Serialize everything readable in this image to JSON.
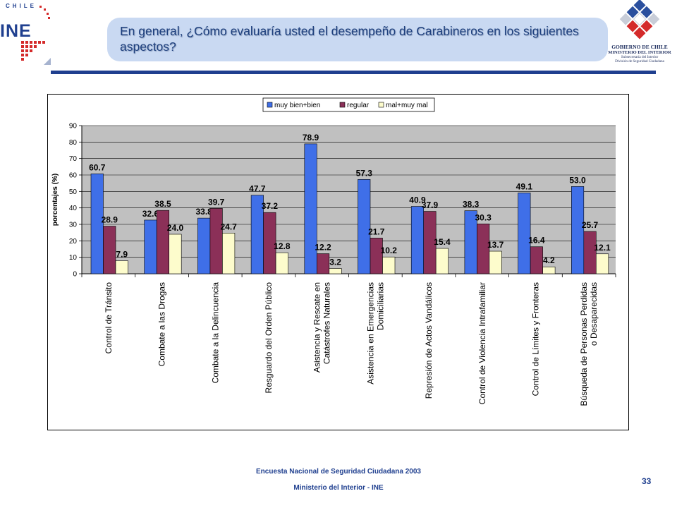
{
  "header": {
    "title": "En general, ¿Cómo evaluaría usted el desempeño de Carabineros en los siguientes aspectos?",
    "ine_logo_text": "INE",
    "chile_text": "CHILE",
    "gov_line1": "GOBIERNO DE CHILE",
    "gov_line2": "MINISTERIO DEL INTERIOR",
    "gov_line3": "Subsecretaría del Interior",
    "gov_line4": "División de Seguridad Ciudadana"
  },
  "footer": {
    "line1": "Encuesta Nacional de Seguridad Ciudadana 2003",
    "line2": "Ministerio del Interior - INE",
    "page_number": "33"
  },
  "colors": {
    "series1": "#3f6fe8",
    "series2": "#8b3058",
    "series3": "#fdfccc",
    "plot_bg": "#c0c0c0",
    "accent": "#1f3f8f"
  },
  "chart_data": {
    "type": "bar",
    "title": "",
    "ylabel": "porcentajes (%)",
    "xlabel": "",
    "ylim": [
      0,
      90
    ],
    "yticks": [
      0,
      10,
      20,
      30,
      40,
      50,
      60,
      70,
      80,
      90
    ],
    "grid": true,
    "legend_position": "top-right",
    "categories": [
      [
        "Control de Tránsito"
      ],
      [
        "Combate a las Drogas"
      ],
      [
        "Combate a la Delincuencia"
      ],
      [
        "Resguardo del Orden Público"
      ],
      [
        "Asistencia y Rescate en",
        "Catástrofes Naturales"
      ],
      [
        "Asistencia en Emergencias",
        "Domiciliarias"
      ],
      [
        "Represión de Actos Vandálicos"
      ],
      [
        "Control de Violencia Intrafamiliar"
      ],
      [
        "Control de Límites y Fronteras"
      ],
      [
        "Búsqueda de Personas Perdidas",
        "o Desaparecidas"
      ]
    ],
    "series": [
      {
        "name": "muy bien+bien",
        "values": [
          60.7,
          32.6,
          33.8,
          47.7,
          78.9,
          57.3,
          40.9,
          38.3,
          49.1,
          53.0
        ],
        "labels": [
          "60.7",
          "32.6",
          "33.8",
          "47.7",
          "78.9",
          "57.3",
          "40.9",
          "38.3",
          "49.1",
          "53.0"
        ]
      },
      {
        "name": "regular",
        "values": [
          28.9,
          38.5,
          39.7,
          37.2,
          12.2,
          21.7,
          37.9,
          30.3,
          16.4,
          25.7
        ],
        "labels": [
          "28.9",
          "38.5",
          "39.7",
          "37.2",
          "12.2",
          "21.7",
          "37.9",
          "30.3",
          "16.4",
          "25.7"
        ]
      },
      {
        "name": "mal+muy mal",
        "values": [
          7.9,
          24.0,
          24.7,
          12.8,
          3.2,
          10.2,
          15.4,
          13.7,
          4.2,
          12.1
        ],
        "labels": [
          "7.9",
          "24.0",
          "24.7",
          "12.8",
          "3.2",
          "10.2",
          "15.4",
          "13.7",
          "4.2",
          "12.1"
        ]
      }
    ]
  }
}
